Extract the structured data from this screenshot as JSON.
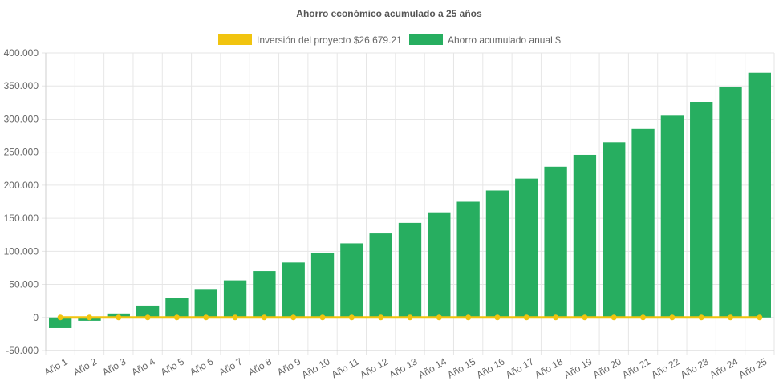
{
  "chart_data": {
    "type": "bar",
    "title": "Ahorro económico acumulado a 25 años",
    "xlabel": "",
    "ylabel": "",
    "ylim": [
      -50000,
      400000
    ],
    "yticks": [
      "400.000",
      "350.000",
      "300.000",
      "250.000",
      "200.000",
      "150.000",
      "100.000",
      "50.000",
      "0",
      "-50.000"
    ],
    "ytick_values": [
      400000,
      350000,
      300000,
      250000,
      200000,
      150000,
      100000,
      50000,
      0,
      -50000
    ],
    "grid": true,
    "legend_position": "top",
    "categories": [
      "Año 1",
      "Año 2",
      "Año 3",
      "Año 4",
      "Año 5",
      "Año 6",
      "Año 7",
      "Año 8",
      "Año 9",
      "Año 10",
      "Año 11",
      "Año 12",
      "Año 13",
      "Año 14",
      "Año 15",
      "Año 16",
      "Año 17",
      "Año 18",
      "Año 19",
      "Año 20",
      "Año 21",
      "Año 22",
      "Año 23",
      "Año 24",
      "Año 25"
    ],
    "series": [
      {
        "name": "Inversión del proyecto $26,679.21",
        "type": "line",
        "color": "#f1c40f",
        "values": [
          0,
          0,
          0,
          0,
          0,
          0,
          0,
          0,
          0,
          0,
          0,
          0,
          0,
          0,
          0,
          0,
          0,
          0,
          0,
          0,
          0,
          0,
          0,
          0,
          0
        ]
      },
      {
        "name": "Ahorro acumulado anual $",
        "type": "bar",
        "color": "#27ae60",
        "values": [
          -16000,
          -5000,
          6000,
          18000,
          30000,
          43000,
          56000,
          70000,
          83000,
          98000,
          112000,
          127000,
          143000,
          159000,
          175000,
          192000,
          210000,
          228000,
          246000,
          265000,
          285000,
          305000,
          326000,
          348000,
          370000
        ]
      }
    ]
  }
}
